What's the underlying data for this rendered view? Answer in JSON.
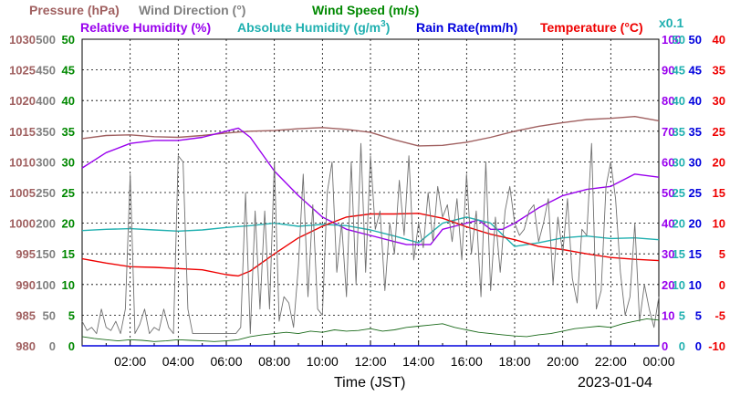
{
  "chart_data": {
    "type": "line",
    "x_axis": {
      "label": "Time (JST)",
      "date": "2023-01-04",
      "tick_labels": [
        "02:00",
        "04:00",
        "06:00",
        "08:00",
        "10:00",
        "12:00",
        "14:00",
        "16:00",
        "18:00",
        "20:00",
        "22:00",
        "00:00"
      ],
      "range_hours": [
        0,
        24
      ]
    },
    "grid": true,
    "scale_note": "x0.1",
    "axes": [
      {
        "name": "Pressure (hPa)",
        "side": "left",
        "color": "#a06060",
        "range": [
          980,
          1030
        ],
        "ticks": [
          "1030",
          "1025",
          "1020",
          "1015",
          "1010",
          "1005",
          "1000",
          "995",
          "990",
          "985",
          "980"
        ]
      },
      {
        "name": "Wind Direction (°)",
        "side": "left",
        "color": "#808080",
        "range": [
          0,
          500
        ],
        "ticks": [
          "500",
          "450",
          "400",
          "350",
          "300",
          "250",
          "200",
          "150",
          "100",
          "50",
          "0"
        ]
      },
      {
        "name": "Wind Speed (m/s)",
        "side": "left",
        "color": "#008800",
        "range": [
          0,
          50
        ],
        "ticks": [
          "50",
          "45",
          "40",
          "35",
          "30",
          "25",
          "20",
          "15",
          "10",
          "5",
          "0"
        ]
      },
      {
        "name": "Relative Humidity (%)",
        "side": "right",
        "color": "#9900ee",
        "range": [
          0,
          100
        ],
        "ticks": [
          "100",
          "90",
          "80",
          "70",
          "60",
          "50",
          "40",
          "30",
          "20",
          "10",
          "0"
        ]
      },
      {
        "name": "Absolute Humidity (g/m³)",
        "side": "right",
        "color": "#20b0b0",
        "range": [
          0,
          50
        ],
        "ticks": [
          "50",
          "45",
          "40",
          "35",
          "30",
          "25",
          "20",
          "15",
          "10",
          "5",
          "0"
        ]
      },
      {
        "name": "Rain Rate(mm/h)",
        "side": "right",
        "color": "#0000dd",
        "range": [
          0,
          50
        ],
        "ticks": [
          "50",
          "45",
          "40",
          "35",
          "30",
          "25",
          "20",
          "15",
          "10",
          "5",
          "0"
        ]
      },
      {
        "name": "Temperature (°C)",
        "side": "right",
        "color": "#ee0000",
        "range": [
          -10,
          40
        ],
        "ticks": [
          "40",
          "35",
          "30",
          "25",
          "20",
          "15",
          "10",
          "5",
          "0",
          "-5",
          "-10"
        ]
      }
    ],
    "title_parts": {
      "pressure": "Pressure (hPa)",
      "wind_direction": "Wind Direction (°)",
      "wind_speed": "Wind Speed (m/s)",
      "rel_humidity": "Relative Humidity (%)",
      "abs_humidity_pre": "Absolute Humidity (g/m",
      "abs_humidity_sup": "3",
      "abs_humidity_post": ")",
      "rain_rate": "Rain Rate(mm/h)",
      "temperature": "Temperature (°C)"
    },
    "series": [
      {
        "name": "Pressure (hPa)",
        "axis": 0,
        "color": "#a06060",
        "x": [
          0,
          1,
          2,
          3,
          4,
          5,
          6,
          7,
          8,
          9,
          10,
          11,
          12,
          13,
          14,
          15,
          16,
          17,
          18,
          19,
          20,
          21,
          22,
          23,
          24
        ],
        "y": [
          1013.8,
          1014.3,
          1014.4,
          1014.1,
          1014.0,
          1014.3,
          1014.7,
          1015.0,
          1015.1,
          1015.4,
          1015.6,
          1015.3,
          1014.8,
          1013.6,
          1012.6,
          1012.7,
          1013.2,
          1014.0,
          1015.0,
          1015.8,
          1016.4,
          1016.9,
          1017.1,
          1017.4,
          1016.7
        ]
      },
      {
        "name": "Relative Humidity (%)",
        "axis": 3,
        "color": "#9900ee",
        "x": [
          0,
          1,
          2,
          3,
          4,
          5,
          6,
          6.5,
          7,
          8,
          9,
          10,
          11,
          11.5,
          12,
          13,
          13.5,
          14,
          14.5,
          15,
          16,
          16.5,
          17,
          17.5,
          18,
          19,
          20,
          21,
          22,
          23,
          24
        ],
        "y": [
          58,
          63,
          66,
          67,
          67,
          68,
          70,
          71,
          68,
          57,
          49,
          42,
          38,
          37,
          36,
          34,
          33,
          33,
          33,
          38,
          40,
          41,
          38,
          38,
          40,
          45,
          49,
          51,
          52,
          56,
          55
        ]
      },
      {
        "name": "Absolute Humidity (g/m³)",
        "axis": 4,
        "color": "#20b0b0",
        "x": [
          0,
          1,
          2,
          3,
          4,
          5,
          6,
          7,
          8,
          9,
          10,
          11,
          12,
          13,
          14,
          15,
          16,
          17,
          18,
          19,
          20,
          21,
          22,
          23,
          24
        ],
        "y": [
          18.8,
          19.0,
          19.1,
          18.9,
          18.7,
          18.9,
          19.3,
          19.6,
          20.0,
          19.5,
          19.8,
          19.6,
          18.9,
          17.9,
          16.8,
          20.0,
          21.0,
          20.0,
          16.2,
          16.8,
          17.6,
          17.9,
          17.5,
          17.6,
          17.3
        ]
      },
      {
        "name": "Rain Rate(mm/h)",
        "axis": 5,
        "color": "#0000dd",
        "x": [
          0,
          24
        ],
        "y": [
          0,
          0
        ]
      },
      {
        "name": "Temperature (°C)",
        "axis": 6,
        "color": "#ee0000",
        "x": [
          0,
          1,
          2,
          3,
          4,
          5,
          6,
          6.5,
          7,
          8,
          9,
          10,
          11,
          12,
          13,
          14,
          15,
          16,
          17,
          18,
          19,
          20,
          21,
          22,
          23,
          24
        ],
        "y": [
          4.2,
          3.5,
          2.9,
          2.8,
          2.6,
          2.4,
          1.6,
          1.4,
          2.2,
          5.0,
          7.6,
          9.5,
          11.0,
          11.5,
          11.5,
          11.6,
          10.8,
          9.4,
          8.2,
          7.3,
          6.2,
          5.7,
          5.0,
          4.4,
          4.1,
          3.9
        ]
      },
      {
        "name": "Wind Direction (°)",
        "axis": 1,
        "color": "#707070",
        "x": [
          0,
          0.2,
          0.4,
          0.6,
          0.8,
          1.0,
          1.2,
          1.4,
          1.6,
          1.8,
          2.0,
          2.2,
          2.4,
          2.6,
          2.8,
          3.0,
          3.2,
          3.4,
          3.6,
          3.8,
          4.0,
          4.2,
          4.4,
          4.6,
          4.8,
          5.0,
          5.2,
          5.4,
          5.6,
          5.8,
          6.0,
          6.2,
          6.4,
          6.6,
          6.8,
          7.0,
          7.2,
          7.4,
          7.6,
          7.8,
          8.0,
          8.2,
          8.4,
          8.6,
          8.8,
          9.0,
          9.2,
          9.4,
          9.6,
          9.8,
          10.0,
          10.2,
          10.4,
          10.6,
          10.8,
          11.0,
          11.2,
          11.4,
          11.6,
          11.8,
          12.0,
          12.2,
          12.4,
          12.6,
          12.8,
          13.0,
          13.2,
          13.4,
          13.6,
          13.8,
          14.0,
          14.2,
          14.4,
          14.6,
          14.8,
          15.0,
          15.2,
          15.4,
          15.6,
          15.8,
          16.0,
          16.2,
          16.4,
          16.6,
          16.8,
          17.0,
          17.2,
          17.4,
          17.6,
          17.8,
          18.0,
          18.2,
          18.4,
          18.6,
          18.8,
          19.0,
          19.2,
          19.4,
          19.6,
          19.8,
          20.0,
          20.2,
          20.4,
          20.6,
          20.8,
          21.0,
          21.2,
          21.4,
          21.6,
          21.8,
          22.0,
          22.2,
          22.4,
          22.6,
          22.8,
          23.0,
          23.2,
          23.4,
          23.6,
          23.8,
          24.0
        ],
        "y": [
          40,
          25,
          30,
          20,
          60,
          30,
          25,
          40,
          20,
          60,
          280,
          20,
          35,
          60,
          20,
          30,
          25,
          60,
          30,
          20,
          310,
          300,
          60,
          20,
          20,
          20,
          20,
          20,
          20,
          20,
          20,
          20,
          20,
          30,
          250,
          20,
          220,
          60,
          220,
          60,
          300,
          40,
          80,
          70,
          30,
          130,
          280,
          80,
          230,
          60,
          50,
          250,
          300,
          120,
          200,
          80,
          300,
          100,
          330,
          120,
          310,
          190,
          220,
          90,
          200,
          150,
          270,
          180,
          310,
          140,
          200,
          160,
          250,
          170,
          260,
          210,
          230,
          170,
          240,
          140,
          280,
          150,
          220,
          80,
          300,
          90,
          210,
          120,
          220,
          260,
          200,
          180,
          190,
          220,
          230,
          170,
          200,
          240,
          100,
          210,
          150,
          240,
          110,
          70,
          190,
          180,
          330,
          60,
          90,
          260,
          300,
          240,
          120,
          50,
          80,
          200,
          40,
          100,
          60,
          30,
          80
        ]
      },
      {
        "name": "Wind Speed (m/s)",
        "axis": 2,
        "color": "#1a6a1a",
        "x": [
          0,
          0.5,
          1,
          1.5,
          2,
          2.5,
          3,
          3.5,
          4,
          4.5,
          5,
          5.5,
          6,
          6.5,
          7,
          7.5,
          8,
          8.5,
          9,
          9.5,
          10,
          10.5,
          11,
          11.5,
          12,
          12.5,
          13,
          13.5,
          14,
          14.5,
          15,
          15.5,
          16,
          16.5,
          17,
          17.5,
          18,
          18.5,
          19,
          19.5,
          20,
          20.5,
          21,
          21.5,
          22,
          22.5,
          23,
          23.5,
          24
        ],
        "y": [
          1.5,
          1.2,
          1.0,
          0.8,
          1.0,
          0.9,
          0.7,
          0.8,
          1.0,
          0.9,
          0.8,
          0.7,
          0.8,
          1.0,
          1.5,
          1.8,
          2.0,
          2.2,
          2.0,
          2.4,
          2.2,
          2.6,
          2.4,
          2.5,
          2.8,
          2.4,
          2.6,
          3.0,
          3.2,
          3.4,
          3.6,
          3.0,
          2.6,
          2.2,
          2.0,
          1.8,
          1.6,
          1.5,
          1.8,
          2.0,
          2.4,
          2.8,
          3.0,
          3.2,
          3.0,
          3.6,
          4.0,
          4.4,
          4.2
        ]
      }
    ]
  }
}
